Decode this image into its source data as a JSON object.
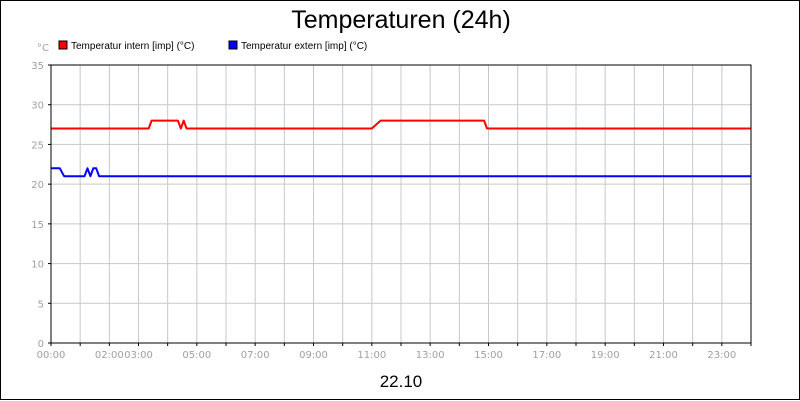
{
  "chart_data": {
    "type": "line",
    "title": "Temperaturen (24h)",
    "ylabel": "°C",
    "xlabel": "22.10",
    "ylim": [
      0,
      35
    ],
    "xlim": [
      0,
      24
    ],
    "grid": true,
    "legend_placement": "top-left",
    "y_ticks": [
      0,
      5,
      10,
      15,
      20,
      25,
      30,
      35
    ],
    "x_ticks": [
      {
        "value": 0,
        "label": "00:00"
      },
      {
        "value": 1,
        "label": ""
      },
      {
        "value": 2,
        "label": "02:00"
      },
      {
        "value": 3,
        "label": "03:00"
      },
      {
        "value": 4,
        "label": ""
      },
      {
        "value": 5,
        "label": "05:00"
      },
      {
        "value": 6,
        "label": ""
      },
      {
        "value": 7,
        "label": "07:00"
      },
      {
        "value": 8,
        "label": ""
      },
      {
        "value": 9,
        "label": "09:00"
      },
      {
        "value": 10,
        "label": ""
      },
      {
        "value": 11,
        "label": "11:00"
      },
      {
        "value": 12,
        "label": ""
      },
      {
        "value": 13,
        "label": "13:00"
      },
      {
        "value": 14,
        "label": ""
      },
      {
        "value": 15,
        "label": "15:00"
      },
      {
        "value": 16,
        "label": ""
      },
      {
        "value": 17,
        "label": "17:00"
      },
      {
        "value": 18,
        "label": ""
      },
      {
        "value": 19,
        "label": "19:00"
      },
      {
        "value": 20,
        "label": ""
      },
      {
        "value": 21,
        "label": "21:00"
      },
      {
        "value": 22,
        "label": ""
      },
      {
        "value": 23,
        "label": "23:00"
      },
      {
        "value": 24,
        "label": ""
      }
    ],
    "series": [
      {
        "name": "Temperatur intern [imp] (°C)",
        "color": "#ff0000",
        "x": [
          0,
          3.35,
          3.45,
          4.35,
          4.45,
          4.55,
          4.65,
          4.75,
          11.0,
          11.3,
          14.85,
          14.95,
          24
        ],
        "y": [
          27,
          27,
          28,
          28,
          27,
          28,
          27,
          27,
          27,
          28,
          28,
          27,
          27
        ]
      },
      {
        "name": "Temperatur extern [imp] (°C)",
        "color": "#0000ff",
        "x": [
          0,
          0.3,
          0.45,
          1.15,
          1.25,
          1.35,
          1.45,
          1.55,
          1.65,
          24
        ],
        "y": [
          22,
          22,
          21,
          21,
          22,
          21,
          22,
          22,
          21,
          21
        ]
      }
    ]
  }
}
